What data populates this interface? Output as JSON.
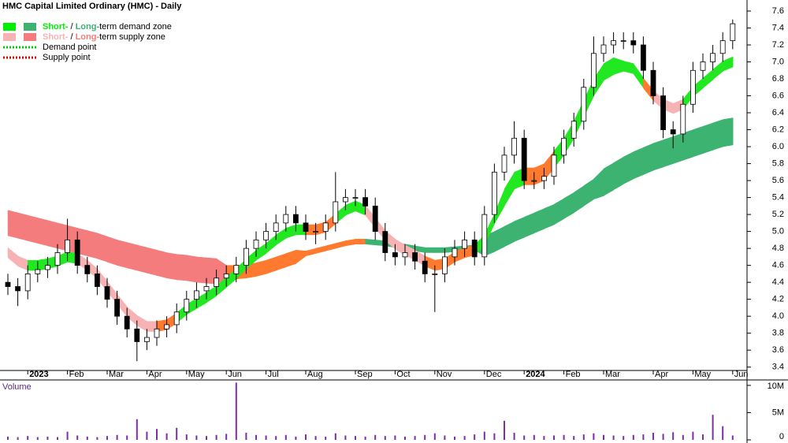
{
  "chart_data": {
    "type": "candlestick",
    "title": "HMC Capital Limited Ordinary (HMC) - Daily",
    "legend": [
      {
        "short": "Short-",
        "sep": " / ",
        "long": "Long-",
        "rest": "term demand zone",
        "short_color": "#00ee00",
        "long_color": "#3cb371"
      },
      {
        "short": "Short-",
        "sep": " / ",
        "long": "Long-",
        "rest": "term supply zone",
        "short_color": "#f7b3b3",
        "long_color": "#f47c7c"
      },
      {
        "label": "Demand point",
        "color": "#00cc00"
      },
      {
        "label": "Supply point",
        "color": "#dd0000"
      }
    ],
    "categories": [
      null,
      null,
      "2023",
      null,
      null,
      null,
      "Feb",
      null,
      null,
      null,
      "Mar",
      null,
      null,
      null,
      "Apr",
      null,
      null,
      null,
      "May",
      null,
      null,
      null,
      "Jun",
      null,
      null,
      null,
      "Jul",
      null,
      null,
      null,
      "Aug",
      null,
      null,
      null,
      null,
      "Sep",
      null,
      null,
      null,
      "Oct",
      null,
      null,
      null,
      "Nov",
      null,
      null,
      null,
      null,
      "Dec",
      null,
      null,
      null,
      "2024",
      null,
      null,
      null,
      "Feb",
      null,
      null,
      null,
      "Mar",
      null,
      null,
      null,
      null,
      "Apr",
      null,
      null,
      null,
      "May",
      null,
      null,
      null,
      "Jun"
    ],
    "open": [
      4.4,
      4.35,
      4.3,
      4.5,
      4.55,
      4.6,
      4.75,
      4.9,
      4.6,
      4.5,
      4.35,
      4.2,
      4.0,
      3.85,
      3.7,
      3.75,
      3.85,
      3.9,
      4.05,
      4.2,
      4.3,
      4.35,
      4.45,
      4.5,
      4.6,
      4.8,
      4.9,
      5.0,
      5.1,
      5.2,
      5.1,
      5.0,
      5.0,
      5.1,
      5.35,
      5.4,
      5.4,
      5.3,
      5.0,
      4.75,
      4.7,
      4.75,
      4.65,
      4.5,
      4.5,
      4.7,
      4.8,
      4.9,
      4.7,
      5.2,
      5.7,
      5.9,
      6.1,
      5.6,
      5.6,
      5.65,
      5.9,
      6.1,
      6.3,
      6.7,
      7.1,
      7.2,
      7.25,
      7.25,
      7.2,
      6.9,
      6.6,
      6.2,
      6.15,
      6.5,
      6.9,
      7.0,
      7.1,
      7.25
    ],
    "high": [
      4.5,
      4.45,
      4.6,
      4.65,
      4.7,
      4.85,
      5.15,
      5.0,
      4.7,
      4.6,
      4.45,
      4.3,
      4.1,
      3.95,
      3.85,
      3.95,
      4.0,
      4.15,
      4.3,
      4.4,
      4.45,
      4.55,
      4.6,
      4.7,
      4.9,
      5.0,
      5.1,
      5.2,
      5.3,
      5.3,
      5.2,
      5.1,
      5.2,
      5.7,
      5.5,
      5.5,
      5.5,
      5.4,
      5.1,
      4.85,
      4.85,
      4.85,
      4.75,
      4.6,
      4.8,
      4.9,
      5.0,
      5.0,
      5.3,
      5.8,
      6.0,
      6.3,
      6.2,
      5.7,
      5.75,
      6.0,
      6.2,
      6.4,
      6.8,
      7.3,
      7.3,
      7.35,
      7.35,
      7.35,
      7.3,
      7.0,
      6.7,
      6.3,
      6.6,
      7.0,
      7.1,
      7.2,
      7.35,
      7.5
    ],
    "low": [
      4.25,
      4.12,
      4.2,
      4.4,
      4.45,
      4.5,
      4.65,
      4.5,
      4.4,
      4.25,
      4.1,
      3.9,
      3.75,
      3.47,
      3.6,
      3.65,
      3.75,
      3.8,
      3.95,
      4.1,
      4.2,
      4.25,
      4.35,
      4.4,
      4.5,
      4.7,
      4.8,
      4.9,
      5.0,
      5.0,
      4.9,
      4.85,
      4.9,
      5.0,
      5.25,
      5.3,
      5.2,
      4.9,
      4.65,
      4.6,
      4.6,
      4.55,
      4.4,
      4.05,
      4.4,
      4.6,
      4.7,
      4.6,
      4.6,
      5.1,
      5.6,
      5.8,
      5.5,
      5.5,
      5.5,
      5.55,
      5.8,
      6.0,
      6.2,
      6.6,
      7.0,
      7.1,
      7.15,
      7.1,
      6.8,
      6.5,
      6.1,
      5.98,
      6.05,
      6.4,
      6.8,
      6.9,
      7.0,
      7.15
    ],
    "close": [
      4.35,
      4.3,
      4.5,
      4.55,
      4.6,
      4.75,
      4.9,
      4.6,
      4.5,
      4.35,
      4.2,
      4.0,
      3.85,
      3.7,
      3.75,
      3.85,
      3.9,
      4.05,
      4.2,
      4.3,
      4.35,
      4.45,
      4.5,
      4.6,
      4.8,
      4.9,
      5.0,
      5.1,
      5.2,
      5.1,
      5.0,
      5.0,
      5.1,
      5.35,
      5.4,
      5.4,
      5.3,
      5.0,
      4.75,
      4.7,
      4.75,
      4.65,
      4.5,
      4.5,
      4.7,
      4.8,
      4.9,
      4.7,
      5.2,
      5.7,
      5.9,
      6.1,
      5.6,
      5.6,
      5.65,
      5.9,
      6.1,
      6.3,
      6.7,
      7.1,
      7.2,
      7.25,
      7.25,
      7.2,
      6.9,
      6.6,
      6.2,
      6.15,
      6.5,
      6.9,
      7.0,
      7.1,
      7.25,
      7.45
    ],
    "up_color": "#ffffff",
    "down_color": "#000000",
    "zones": [
      {
        "upper": [
          4.81,
          4.71,
          4.66,
          4.66,
          4.68,
          4.71,
          4.76,
          4.74,
          4.66,
          4.56,
          4.41,
          4.26,
          4.11,
          4.01,
          3.94,
          3.94,
          3.96,
          4.04,
          4.14,
          4.21,
          4.28,
          4.36,
          4.46,
          4.56,
          4.68,
          4.78,
          4.86,
          4.96,
          5.04,
          5.08,
          5.08,
          5.08,
          5.11,
          5.21,
          5.31,
          5.36,
          5.31,
          5.16,
          5.01,
          4.91,
          4.84,
          4.78,
          4.71,
          4.66,
          4.68,
          4.76,
          4.81,
          4.84,
          4.96,
          5.21,
          5.5,
          5.7,
          5.75,
          5.75,
          5.8,
          5.95,
          6.1,
          6.3,
          6.55,
          6.8,
          6.98,
          7.05,
          7.01,
          6.98,
          6.81,
          6.66,
          6.56,
          6.51,
          6.56,
          6.71,
          6.81,
          6.91,
          7.01,
          7.06
        ],
        "lower": [
          4.69,
          4.59,
          4.54,
          4.54,
          4.56,
          4.59,
          4.64,
          4.62,
          4.54,
          4.44,
          4.29,
          4.14,
          3.99,
          3.89,
          3.82,
          3.82,
          3.84,
          3.92,
          4.02,
          4.09,
          4.16,
          4.24,
          4.34,
          4.44,
          4.56,
          4.66,
          4.74,
          4.84,
          4.92,
          4.96,
          4.96,
          4.96,
          4.99,
          5.09,
          5.19,
          5.24,
          5.19,
          5.04,
          4.89,
          4.79,
          4.72,
          4.66,
          4.59,
          4.54,
          4.56,
          4.64,
          4.69,
          4.72,
          4.84,
          5.09,
          5.3,
          5.5,
          5.55,
          5.55,
          5.6,
          5.75,
          5.9,
          6.1,
          6.35,
          6.6,
          6.78,
          6.85,
          6.89,
          6.86,
          6.69,
          6.54,
          6.44,
          6.39,
          6.44,
          6.59,
          6.69,
          6.79,
          6.89,
          6.94
        ],
        "colors": [
          "#f7b3b3",
          "#f7b3b3",
          "#22e822",
          "#22e822",
          "#22e822",
          "#22e822",
          "#22e822",
          "#f7b3b3",
          "#f7b3b3",
          "#f7b3b3",
          "#f7b3b3",
          "#f7b3b3",
          "#f7b3b3",
          "#f7b3b3",
          "#f7b3b3",
          "#ff7a2e",
          "#ff7a2e",
          "#22e822",
          "#22e822",
          "#22e822",
          "#22e822",
          "#22e822",
          "#22e822",
          "#22e822",
          "#22e822",
          "#22e822",
          "#22e822",
          "#22e822",
          "#22e822",
          "#22e822",
          "#ff7a2e",
          "#ff7a2e",
          "#ff7a2e",
          "#22e822",
          "#22e822",
          "#22e822",
          "#f7b3b3",
          "#f7b3b3",
          "#f7b3b3",
          "#f7b3b3",
          "#f7b3b3",
          "#f7b3b3",
          "#ff7a2e",
          "#ff7a2e",
          "#ff7a2e",
          "#ff7a2e",
          "#ff7a2e",
          "#22e822",
          "#22e822",
          "#22e822",
          "#22e822",
          "#22e822",
          "#ff7a2e",
          "#ff7a2e",
          "#ff7a2e",
          "#22e822",
          "#22e822",
          "#22e822",
          "#22e822",
          "#22e822",
          "#22e822",
          "#22e822",
          "#22e822",
          "#22e822",
          "#ff7a2e",
          "#f7b3b3",
          "#f7b3b3",
          "#f7b3b3",
          "#22e822",
          "#22e822",
          "#22e822",
          "#22e822",
          "#22e822",
          "#22e822"
        ]
      },
      {
        "upper": [
          5.25,
          5.22,
          5.19,
          5.16,
          5.13,
          5.1,
          5.07,
          5.04,
          5.01,
          4.98,
          4.94,
          4.9,
          4.87,
          4.84,
          4.81,
          4.78,
          4.75,
          4.73,
          4.72,
          4.7,
          4.69,
          4.68,
          4.6,
          4.6,
          4.61,
          4.63,
          4.66,
          4.7,
          4.74,
          4.78,
          4.77,
          4.8,
          4.83,
          4.86,
          4.89,
          4.91,
          4.91,
          4.9,
          4.89,
          4.87,
          4.85,
          4.83,
          4.81,
          4.81,
          4.81,
          4.82,
          4.83,
          4.84,
          4.95,
          5.0,
          5.06,
          5.12,
          5.17,
          5.22,
          5.27,
          5.32,
          5.39,
          5.46,
          5.54,
          5.62,
          5.74,
          5.81,
          5.88,
          5.94,
          5.99,
          6.04,
          6.08,
          6.12,
          6.16,
          6.2,
          6.24,
          6.28,
          6.32,
          6.34
        ],
        "lower": [
          4.95,
          4.92,
          4.89,
          4.86,
          4.83,
          4.8,
          4.77,
          4.74,
          4.71,
          4.68,
          4.64,
          4.6,
          4.57,
          4.54,
          4.51,
          4.48,
          4.45,
          4.43,
          4.42,
          4.4,
          4.39,
          4.38,
          4.44,
          4.44,
          4.45,
          4.47,
          4.5,
          4.54,
          4.58,
          4.62,
          4.71,
          4.74,
          4.77,
          4.8,
          4.83,
          4.85,
          4.85,
          4.84,
          4.83,
          4.81,
          4.79,
          4.77,
          4.75,
          4.75,
          4.75,
          4.76,
          4.77,
          4.78,
          4.71,
          4.76,
          4.82,
          4.88,
          4.93,
          4.98,
          5.03,
          5.08,
          5.15,
          5.22,
          5.3,
          5.38,
          5.42,
          5.49,
          5.56,
          5.62,
          5.67,
          5.72,
          5.76,
          5.8,
          5.84,
          5.88,
          5.92,
          5.96,
          6.0,
          6.02
        ],
        "colors": [
          "#f47c7c",
          "#f47c7c",
          "#f47c7c",
          "#f47c7c",
          "#f47c7c",
          "#f47c7c",
          "#f47c7c",
          "#f47c7c",
          "#f47c7c",
          "#f47c7c",
          "#f47c7c",
          "#f47c7c",
          "#f47c7c",
          "#f47c7c",
          "#f47c7c",
          "#f47c7c",
          "#f47c7c",
          "#f47c7c",
          "#f47c7c",
          "#f47c7c",
          "#f47c7c",
          "#f47c7c",
          "#ff7a2e",
          "#ff7a2e",
          "#ff7a2e",
          "#ff7a2e",
          "#ff7a2e",
          "#ff7a2e",
          "#ff7a2e",
          "#ff7a2e",
          "#ff7a2e",
          "#ff7a2e",
          "#ff7a2e",
          "#ff7a2e",
          "#ff7a2e",
          "#ff7a2e",
          "#3cb371",
          "#3cb371",
          "#3cb371",
          "#3cb371",
          "#3cb371",
          "#3cb371",
          "#3cb371",
          "#3cb371",
          "#3cb371",
          "#3cb371",
          "#3cb371",
          "#3cb371",
          "#3cb371",
          "#3cb371",
          "#3cb371",
          "#3cb371",
          "#3cb371",
          "#3cb371",
          "#3cb371",
          "#3cb371",
          "#3cb371",
          "#3cb371",
          "#3cb371",
          "#3cb371",
          "#3cb371",
          "#3cb371",
          "#3cb371",
          "#3cb371",
          "#3cb371",
          "#3cb371",
          "#3cb371",
          "#3cb371",
          "#3cb371",
          "#3cb371",
          "#3cb371",
          "#3cb371",
          "#3cb371",
          "#3cb371"
        ]
      }
    ],
    "ylim": [
      3.36,
      7.73
    ],
    "yticks": [
      3.4,
      3.6,
      3.8,
      {
        "value": 4,
        "label": "4.0"
      },
      4.2,
      4.4,
      4.6,
      4.8,
      {
        "value": 5,
        "label": "5.0"
      },
      5.2,
      5.4,
      5.6,
      5.8,
      {
        "value": 6,
        "label": "6.0"
      },
      6.2,
      6.4,
      6.6,
      6.8,
      {
        "value": 7,
        "label": "7.0"
      },
      7.2,
      7.4,
      7.6
    ],
    "volume": {
      "label": "Volume",
      "color": "#7b2fa8",
      "values": [
        600000,
        500000,
        700000,
        500000,
        600000,
        500000,
        1500000,
        800000,
        600000,
        500000,
        700000,
        900000,
        800000,
        3800000,
        1500000,
        2000000,
        1200000,
        2200000,
        1000000,
        800000,
        700000,
        900000,
        1100000,
        10500000,
        1300000,
        900000,
        800000,
        700000,
        900000,
        600000,
        1000000,
        700000,
        600000,
        1200000,
        800000,
        700000,
        600000,
        900000,
        700000,
        800000,
        600000,
        700000,
        900000,
        1200000,
        800000,
        600000,
        700000,
        1000000,
        1500000,
        1200000,
        3500000,
        1300000,
        800000,
        900000,
        700000,
        800000,
        900000,
        700000,
        1000000,
        1200000,
        900000,
        800000,
        700000,
        900000,
        1000000,
        1300000,
        1100000,
        1400000,
        900000,
        1500000,
        1000000,
        4600000,
        2500000,
        800000
      ],
      "ylim": [
        0,
        11000000
      ],
      "yticks": [
        {
          "value": 0,
          "label": "0"
        },
        {
          "value": 5000000,
          "label": "5M"
        },
        {
          "value": 10000000,
          "label": "10M"
        }
      ]
    }
  }
}
